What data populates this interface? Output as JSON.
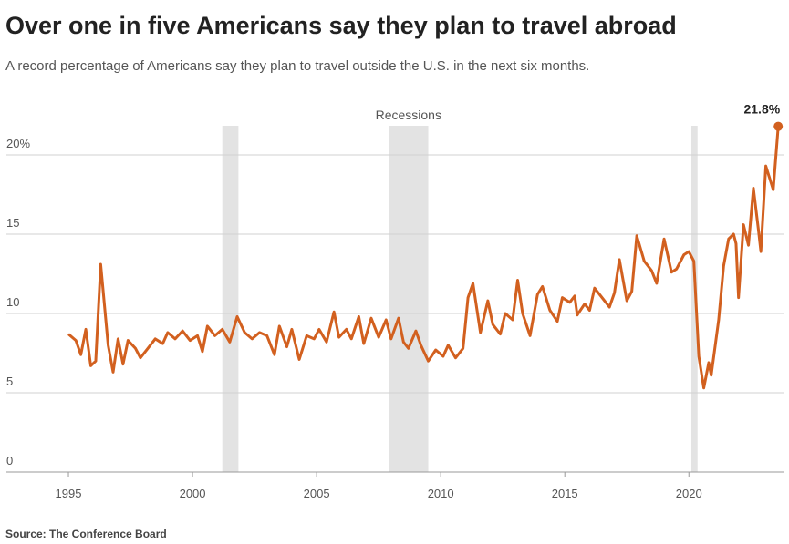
{
  "chart_data": {
    "type": "line",
    "title": "Over one in five Americans say they plan to travel abroad",
    "subtitle": "A record percentage of Americans say they plan to travel outside the U.S. in the next six months.",
    "source": "Source: The Conference Board",
    "annotation": "21.8%",
    "recession_label": "Recessions",
    "recessions": [
      [
        2001.2,
        2001.85
      ],
      [
        2007.9,
        2009.5
      ],
      [
        2020.1,
        2020.35
      ]
    ],
    "color": "#d2601f",
    "grid": true,
    "x": [
      1995.0,
      1995.3,
      1995.5,
      1995.7,
      1995.9,
      1996.1,
      1996.3,
      1996.6,
      1996.8,
      1997.0,
      1997.2,
      1997.4,
      1997.7,
      1997.9,
      1998.2,
      1998.5,
      1998.8,
      1999.0,
      1999.3,
      1999.6,
      1999.9,
      2000.2,
      2000.4,
      2000.6,
      2000.9,
      2001.2,
      2001.5,
      2001.8,
      2002.1,
      2002.4,
      2002.7,
      2003.0,
      2003.3,
      2003.5,
      2003.8,
      2004.0,
      2004.3,
      2004.6,
      2004.9,
      2005.1,
      2005.4,
      2005.7,
      2005.9,
      2006.2,
      2006.4,
      2006.7,
      2006.9,
      2007.2,
      2007.5,
      2007.8,
      2008.0,
      2008.3,
      2008.5,
      2008.7,
      2009.0,
      2009.2,
      2009.5,
      2009.8,
      2010.1,
      2010.3,
      2010.6,
      2010.9,
      2011.1,
      2011.3,
      2011.6,
      2011.9,
      2012.1,
      2012.4,
      2012.6,
      2012.9,
      2013.1,
      2013.3,
      2013.6,
      2013.9,
      2014.1,
      2014.4,
      2014.7,
      2014.9,
      2015.2,
      2015.4,
      2015.5,
      2015.8,
      2016.0,
      2016.2,
      2016.5,
      2016.8,
      2017.0,
      2017.2,
      2017.5,
      2017.7,
      2017.9,
      2018.2,
      2018.5,
      2018.7,
      2019.0,
      2019.3,
      2019.5,
      2019.8,
      2020.0,
      2020.2,
      2020.4,
      2020.6,
      2020.8,
      2020.9,
      2021.2,
      2021.4,
      2021.6,
      2021.8,
      2021.9,
      2022.0,
      2022.2,
      2022.4,
      2022.6,
      2022.8,
      2022.9,
      2023.1,
      2023.4,
      2023.6
    ],
    "values": [
      8.7,
      8.3,
      7.4,
      9.0,
      6.7,
      7.0,
      13.1,
      8.0,
      6.3,
      8.4,
      6.8,
      8.3,
      7.8,
      7.2,
      7.8,
      8.4,
      8.1,
      8.8,
      8.4,
      8.9,
      8.3,
      8.6,
      7.6,
      9.2,
      8.6,
      9.0,
      8.2,
      9.8,
      8.8,
      8.4,
      8.8,
      8.6,
      7.4,
      9.2,
      7.9,
      9.0,
      7.1,
      8.6,
      8.4,
      9.0,
      8.2,
      10.1,
      8.5,
      9.0,
      8.4,
      9.8,
      8.1,
      9.7,
      8.5,
      9.6,
      8.4,
      9.7,
      8.2,
      7.8,
      8.9,
      8.0,
      7.0,
      7.7,
      7.3,
      8.0,
      7.2,
      7.8,
      11.0,
      11.9,
      8.8,
      10.8,
      9.3,
      8.7,
      10.0,
      9.6,
      12.1,
      10.0,
      8.6,
      11.2,
      11.7,
      10.2,
      9.5,
      11.0,
      10.7,
      11.1,
      9.9,
      10.6,
      10.2,
      11.6,
      11.0,
      10.4,
      11.3,
      13.4,
      10.8,
      11.4,
      14.9,
      13.3,
      12.7,
      11.9,
      14.7,
      12.6,
      12.8,
      13.7,
      13.9,
      13.3,
      7.3,
      5.3,
      6.9,
      6.1,
      9.6,
      13.0,
      14.7,
      15.0,
      14.4,
      11.0,
      15.6,
      14.3,
      17.9,
      15.3,
      13.9,
      19.3,
      17.8,
      21.8
    ],
    "xlim": [
      1992.5,
      2023.85
    ],
    "xticks": [
      1995,
      2000,
      2005,
      2010,
      2015,
      2020
    ],
    "ylim": [
      0,
      22
    ],
    "yticks": [
      0,
      5,
      10,
      15,
      {
        "value": 20,
        "label": "20%"
      }
    ]
  }
}
